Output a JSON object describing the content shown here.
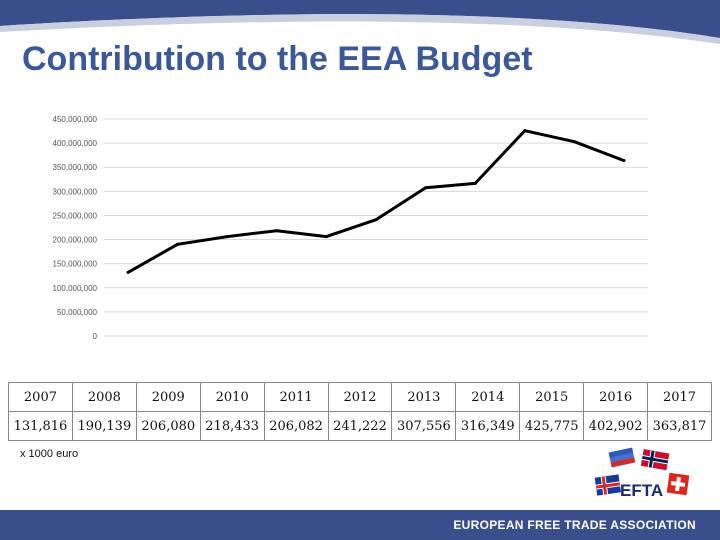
{
  "slide": {
    "title": "Contribution to the EEA Budget",
    "unit_note": "x 1000 euro",
    "footer": "EUROPEAN FREE TRADE ASSOCIATION",
    "logo_text": "EFTA"
  },
  "colors": {
    "title": "#3b5998",
    "footer_bar": "#3b4e8c",
    "line": "#000000",
    "grid": "#d9d9d9"
  },
  "chart_data": {
    "type": "line",
    "title": "",
    "xlabel": "",
    "ylabel": "",
    "ylim": [
      0,
      450000000
    ],
    "y_ticks": [
      "450,000,000",
      "400,000,000",
      "350,000,000",
      "300,000,000",
      "250,000,000",
      "200,000,000",
      "150,000,000",
      "100,000,000",
      "50,000,000",
      "0"
    ],
    "y_tick_values": [
      450000000,
      400000000,
      350000000,
      300000000,
      250000000,
      200000000,
      150000000,
      100000000,
      50000000,
      0
    ],
    "grid": true,
    "legend": "none",
    "x": [
      2007,
      2008,
      2009,
      2010,
      2011,
      2012,
      2013,
      2014,
      2015,
      2016,
      2017
    ],
    "series": [
      {
        "values": [
          131816000,
          190139000,
          206080000,
          218433000,
          206082000,
          241222000,
          307556000,
          316349000,
          425775000,
          402902000,
          363817000
        ]
      }
    ]
  },
  "table": {
    "years": [
      "2007",
      "2008",
      "2009",
      "2010",
      "2011",
      "2012",
      "2013",
      "2014",
      "2015",
      "2016",
      "2017"
    ],
    "values": [
      "131,816",
      "190,139",
      "206,080",
      "218,433",
      "206,082",
      "241,222",
      "307,556",
      "316,349",
      "425,775",
      "402,902",
      "363,817"
    ]
  }
}
